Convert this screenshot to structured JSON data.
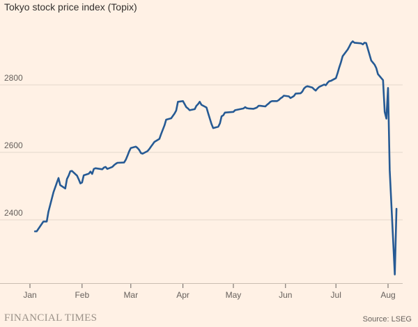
{
  "title": "Tokyo stock price index (Topix)",
  "footer": {
    "brand": "FINANCIAL TIMES",
    "source": "Source: LSEG"
  },
  "colors": {
    "background": "#fff1e5",
    "line": "#265a94",
    "grid": "#e3d8cc",
    "text": "#66605c"
  },
  "chart_data": {
    "type": "line",
    "title": "Tokyo stock price index (Topix)",
    "xlabel": "",
    "ylabel": "",
    "grid": true,
    "ylim": [
      2220,
      2950
    ],
    "yticks": [
      2400,
      2600,
      2800
    ],
    "x_tick_labels": [
      "Jan",
      "Feb",
      "Mar",
      "Apr",
      "May",
      "Jun",
      "Jul",
      "Aug"
    ],
    "x_tick_dates": [
      "2024-01-01",
      "2024-02-01",
      "2024-03-01",
      "2024-04-01",
      "2024-05-01",
      "2024-06-01",
      "2024-07-01",
      "2024-08-01"
    ],
    "series": [
      {
        "x": [
          "2024-01-04",
          "2024-01-05",
          "2024-01-09",
          "2024-01-10",
          "2024-01-11",
          "2024-01-12",
          "2024-01-15",
          "2024-01-16",
          "2024-01-17",
          "2024-01-18",
          "2024-01-19",
          "2024-01-22",
          "2024-01-23",
          "2024-01-24",
          "2024-01-25",
          "2024-01-26",
          "2024-01-29",
          "2024-01-30",
          "2024-01-31",
          "2024-02-01",
          "2024-02-02",
          "2024-02-05",
          "2024-02-06",
          "2024-02-07",
          "2024-02-08",
          "2024-02-09",
          "2024-02-13",
          "2024-02-14",
          "2024-02-15",
          "2024-02-16",
          "2024-02-19",
          "2024-02-20",
          "2024-02-21",
          "2024-02-22",
          "2024-02-26",
          "2024-02-27",
          "2024-02-28",
          "2024-02-29",
          "2024-03-01",
          "2024-03-04",
          "2024-03-05",
          "2024-03-06",
          "2024-03-07",
          "2024-03-08",
          "2024-03-11",
          "2024-03-12",
          "2024-03-13",
          "2024-03-14",
          "2024-03-15",
          "2024-03-18",
          "2024-03-19",
          "2024-03-21",
          "2024-03-22",
          "2024-03-25",
          "2024-03-26",
          "2024-03-27",
          "2024-03-28",
          "2024-03-29",
          "2024-04-01",
          "2024-04-02",
          "2024-04-03",
          "2024-04-04",
          "2024-04-05",
          "2024-04-08",
          "2024-04-09",
          "2024-04-10",
          "2024-04-11",
          "2024-04-12",
          "2024-04-15",
          "2024-04-16",
          "2024-04-17",
          "2024-04-18",
          "2024-04-19",
          "2024-04-22",
          "2024-04-23",
          "2024-04-24",
          "2024-04-25",
          "2024-04-26",
          "2024-05-01",
          "2024-05-02",
          "2024-05-07",
          "2024-05-08",
          "2024-05-09",
          "2024-05-10",
          "2024-05-13",
          "2024-05-14",
          "2024-05-15",
          "2024-05-16",
          "2024-05-17",
          "2024-05-20",
          "2024-05-21",
          "2024-05-22",
          "2024-05-23",
          "2024-05-24",
          "2024-05-27",
          "2024-05-28",
          "2024-05-29",
          "2024-05-30",
          "2024-05-31",
          "2024-06-03",
          "2024-06-04",
          "2024-06-05",
          "2024-06-06",
          "2024-06-07",
          "2024-06-10",
          "2024-06-11",
          "2024-06-12",
          "2024-06-13",
          "2024-06-14",
          "2024-06-17",
          "2024-06-18",
          "2024-06-19",
          "2024-06-20",
          "2024-06-21",
          "2024-06-24",
          "2024-06-25",
          "2024-06-26",
          "2024-06-27",
          "2024-06-28",
          "2024-07-01",
          "2024-07-02",
          "2024-07-03",
          "2024-07-04",
          "2024-07-05",
          "2024-07-08",
          "2024-07-09",
          "2024-07-10",
          "2024-07-11",
          "2024-07-12",
          "2024-07-16",
          "2024-07-17",
          "2024-07-18",
          "2024-07-19",
          "2024-07-22",
          "2024-07-23",
          "2024-07-24",
          "2024-07-25",
          "2024-07-26",
          "2024-07-29",
          "2024-07-30",
          "2024-07-31",
          "2024-08-01",
          "2024-08-02",
          "2024-08-05",
          "2024-08-06"
        ],
        "y": [
          2366,
          2366,
          2395,
          2395,
          2395,
          2424,
          2482,
          2496,
          2510,
          2524,
          2503,
          2493,
          2521,
          2531,
          2544,
          2545,
          2531,
          2520,
          2508,
          2511,
          2532,
          2537,
          2543,
          2536,
          2551,
          2553,
          2550,
          2555,
          2557,
          2551,
          2557,
          2562,
          2566,
          2569,
          2570,
          2578,
          2590,
          2603,
          2613,
          2617,
          2613,
          2607,
          2598,
          2596,
          2604,
          2610,
          2617,
          2624,
          2631,
          2640,
          2654,
          2680,
          2697,
          2701,
          2708,
          2715,
          2724,
          2750,
          2752,
          2743,
          2734,
          2730,
          2725,
          2728,
          2738,
          2743,
          2750,
          2741,
          2733,
          2716,
          2700,
          2684,
          2672,
          2676,
          2686,
          2707,
          2710,
          2718,
          2720,
          2725,
          2730,
          2734,
          2731,
          2730,
          2729,
          2731,
          2733,
          2738,
          2738,
          2736,
          2741,
          2745,
          2750,
          2752,
          2752,
          2755,
          2760,
          2763,
          2768,
          2766,
          2761,
          2764,
          2767,
          2774,
          2775,
          2780,
          2789,
          2794,
          2796,
          2792,
          2787,
          2783,
          2789,
          2794,
          2801,
          2799,
          2806,
          2811,
          2812,
          2820,
          2835,
          2852,
          2867,
          2885,
          2905,
          2914,
          2924,
          2929,
          2925,
          2923,
          2920,
          2925,
          2924,
          2872,
          2866,
          2860,
          2850,
          2832,
          2814,
          2720,
          2700,
          2791,
          2547,
          2238,
          2433
        ]
      }
    ]
  }
}
